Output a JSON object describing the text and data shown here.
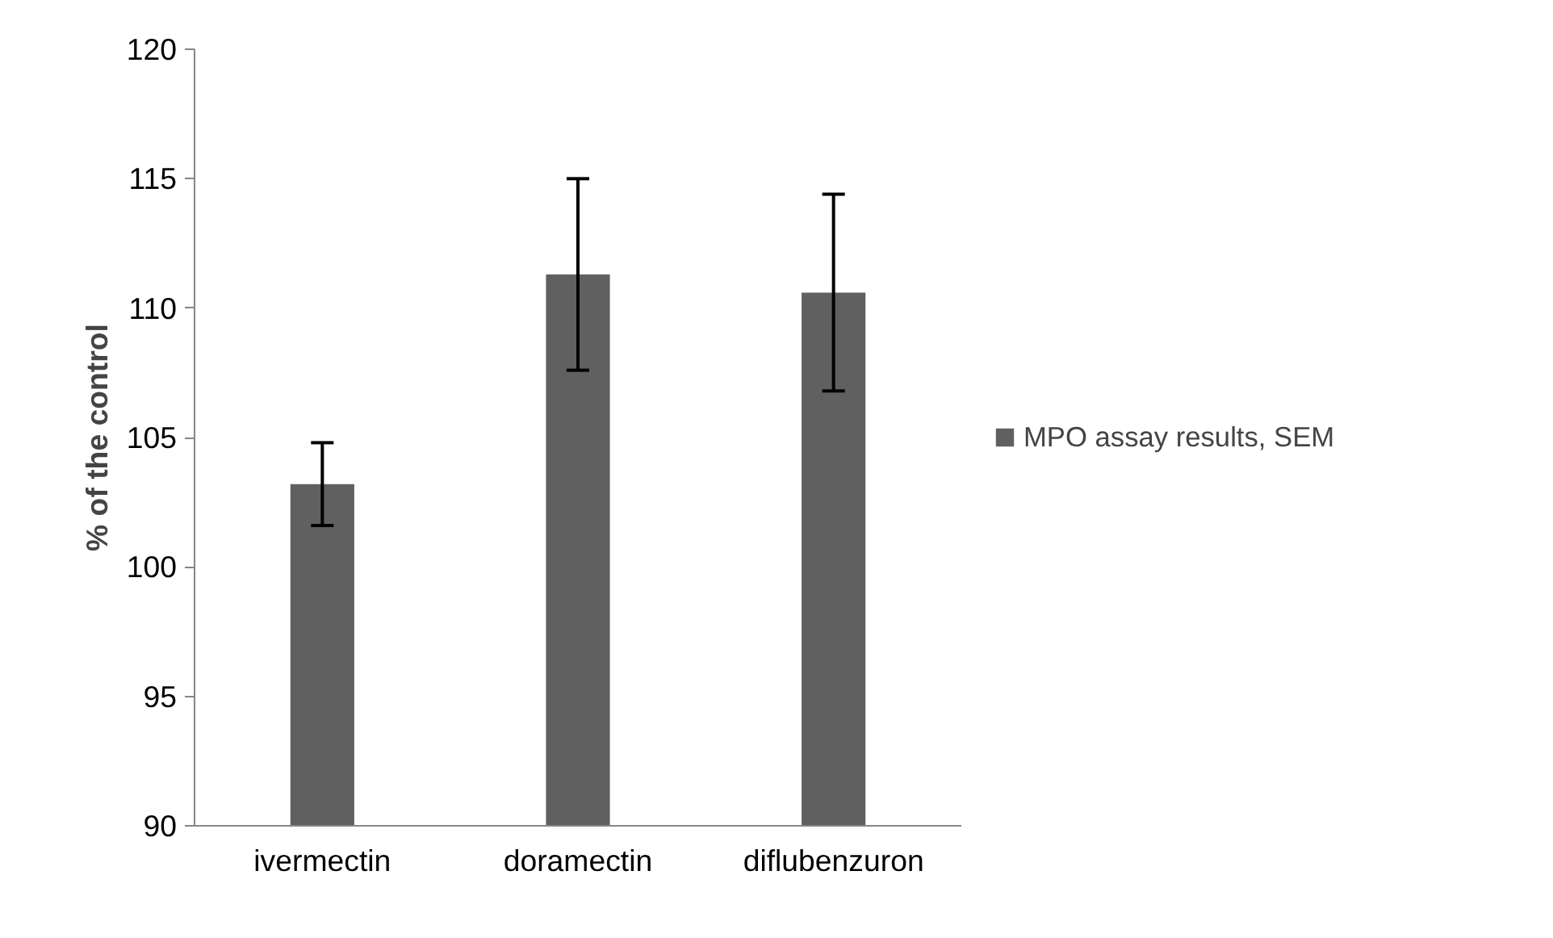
{
  "chart_data": {
    "type": "bar",
    "ylabel": "% of the control",
    "categories": [
      "ivermectin",
      "doramectin",
      "diflubenzuron"
    ],
    "series": [
      {
        "name": "MPO assay results, SEM",
        "color": "#606060",
        "values": [
          103.2,
          111.3,
          110.6
        ],
        "errors": [
          1.6,
          3.7,
          3.8
        ]
      }
    ],
    "ylim": [
      90,
      120
    ],
    "yticks": [
      90,
      95,
      100,
      105,
      110,
      115,
      120
    ],
    "grid": false,
    "legend": "right"
  }
}
